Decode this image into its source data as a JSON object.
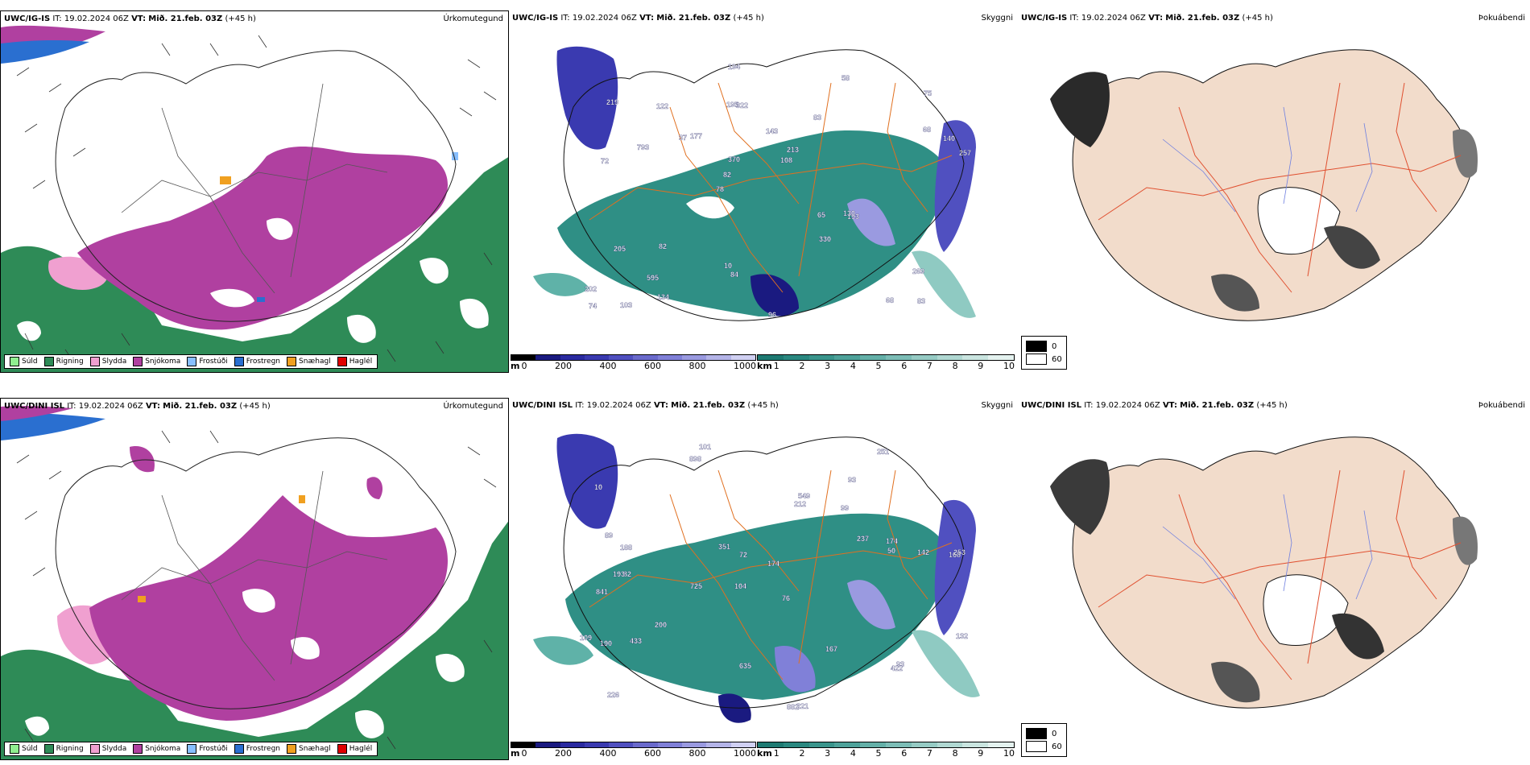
{
  "rows": [
    {
      "model": "UWC/IG-IS",
      "it_label": "IT:",
      "it_value": "19.02.2024 06Z",
      "vt_label": "VT:",
      "vt_value": "Mið. 21.feb. 03Z",
      "lead": "(+45 h)"
    },
    {
      "model": "UWC/DINI ISL",
      "it_label": "IT:",
      "it_value": "19.02.2024 06Z",
      "vt_label": "VT:",
      "vt_value": "Mið. 21.feb. 03Z",
      "lead": "(+45 h)"
    }
  ],
  "panel_titles": {
    "precip_type": "Úrkomutegund",
    "visibility": "Skyggni",
    "fog": "Þokuábendi"
  },
  "precip_legend": [
    {
      "label": "Súld",
      "color": "#90ee90"
    },
    {
      "label": "Rigning",
      "color": "#2e8b57"
    },
    {
      "label": "Slydda",
      "color": "#f0a0d0"
    },
    {
      "label": "Snjókoma",
      "color": "#b040a0"
    },
    {
      "label": "Frostúði",
      "color": "#87bfff"
    },
    {
      "label": "Frostregn",
      "color": "#2a6fd0"
    },
    {
      "label": "Snæhagl",
      "color": "#f0a020"
    },
    {
      "label": "Haglél",
      "color": "#e00000"
    }
  ],
  "colorbar_m": {
    "unit": "m",
    "ticks": [
      "0",
      "200",
      "400",
      "600",
      "800",
      "1000"
    ],
    "colors": [
      "#000000",
      "#1a1a80",
      "#2a2aa0",
      "#3a3ab0",
      "#5050c0",
      "#6a6acc",
      "#8080d8",
      "#9a9ae0",
      "#b4b4e8",
      "#d0d0f2"
    ]
  },
  "colorbar_km": {
    "unit": "km",
    "ticks": [
      "1",
      "2",
      "3",
      "4",
      "5",
      "6",
      "7",
      "8",
      "9",
      "10"
    ],
    "colors": [
      "#1e7a72",
      "#2a8880",
      "#3a958c",
      "#4ea29a",
      "#64b0a8",
      "#7cbdb6",
      "#96cbc4",
      "#b0d8d2",
      "#cae5e0",
      "#e4f2ef"
    ]
  },
  "coverage_legend": [
    {
      "label": "0",
      "color": "#000000"
    },
    {
      "label": "60",
      "color": "#ffffff"
    }
  ],
  "vis_labels_top": [
    "83",
    "72",
    "75",
    "78",
    "83",
    "103",
    "195",
    "143",
    "205",
    "177",
    "202",
    "595",
    "322",
    "213",
    "193",
    "219",
    "194",
    "257",
    "65",
    "68",
    "82",
    "10",
    "370",
    "122",
    "58",
    "82",
    "68",
    "269",
    "130",
    "96",
    "37",
    "793",
    "330",
    "134",
    "140",
    "108",
    "74",
    "84"
  ],
  "vis_labels_bottom": [
    "101",
    "93",
    "168",
    "104",
    "76",
    "82",
    "10",
    "99",
    "841",
    "212",
    "174",
    "226",
    "898",
    "725",
    "882",
    "221",
    "635",
    "251",
    "237",
    "200",
    "188",
    "193",
    "253",
    "142",
    "109",
    "89",
    "72",
    "50",
    "93",
    "190",
    "422",
    "549",
    "433",
    "351",
    "167",
    "132",
    "174"
  ]
}
